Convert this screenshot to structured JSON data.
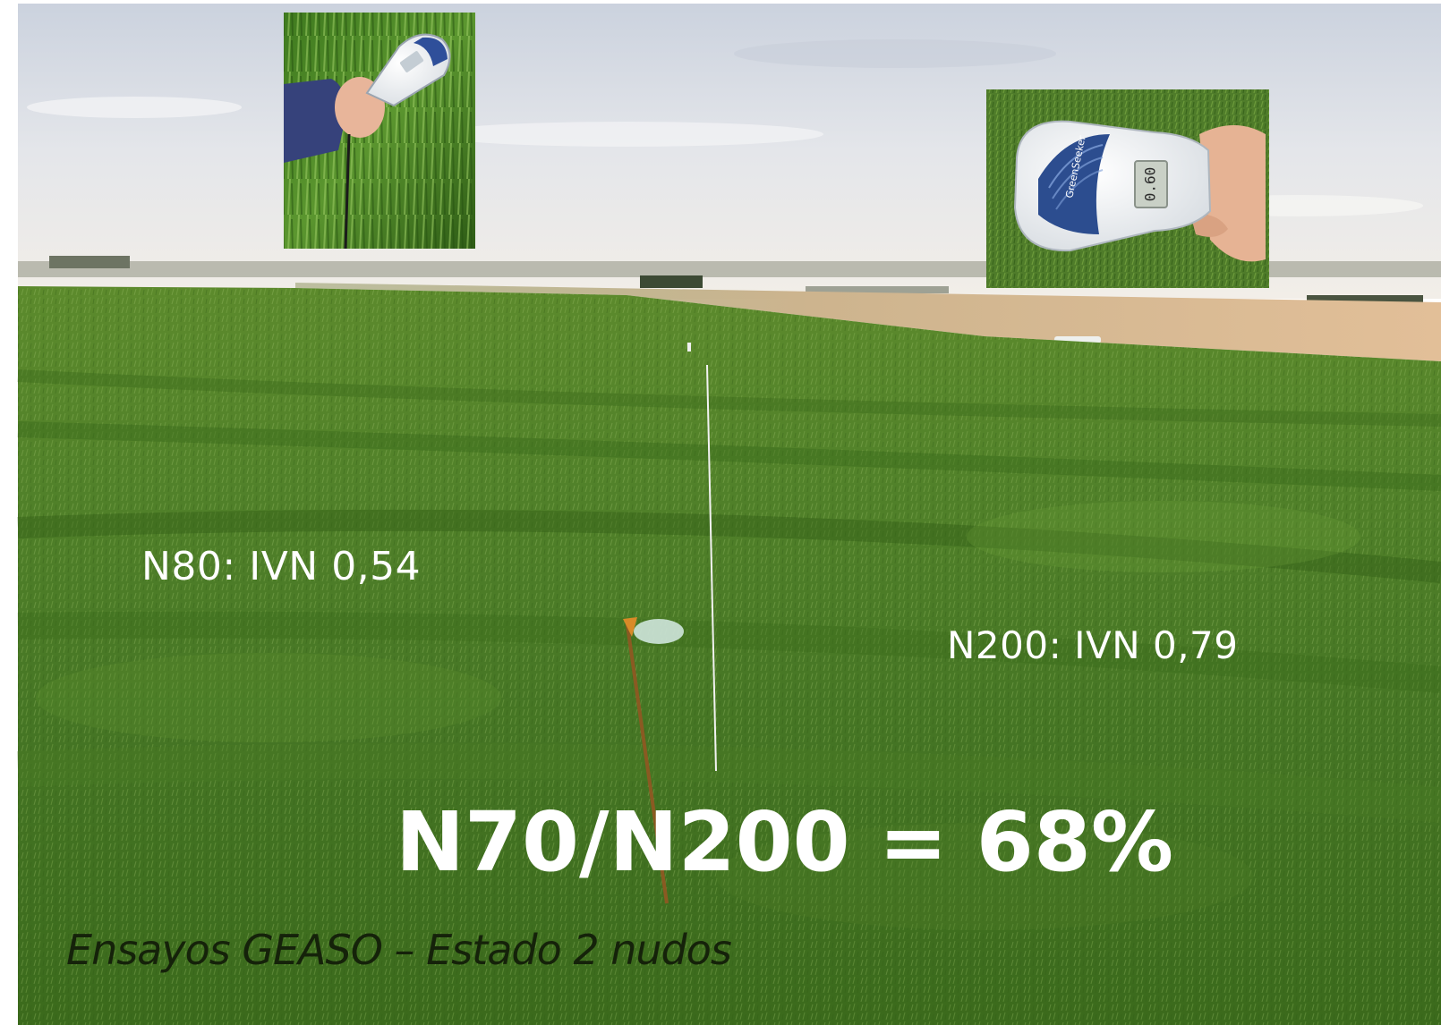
{
  "labels": {
    "n80": "N80: IVN 0,54",
    "n200": "N200: IVN 0,79",
    "ratio": "N70/N200 = 68%",
    "caption": "Ensayos GEASO – Estado 2 nudos"
  },
  "inset_right": {
    "device_brand": "GreenSeeker",
    "display_reading": "0.60"
  },
  "colors": {
    "sky_top": "#d3d8e2",
    "sky_bottom": "#f1ede7",
    "field_far": "#4f7a22",
    "field_near": "#3c6a1a",
    "soil_strip": "#d9b994",
    "label_text": "#ffffff",
    "caption_text": "#15220a"
  }
}
